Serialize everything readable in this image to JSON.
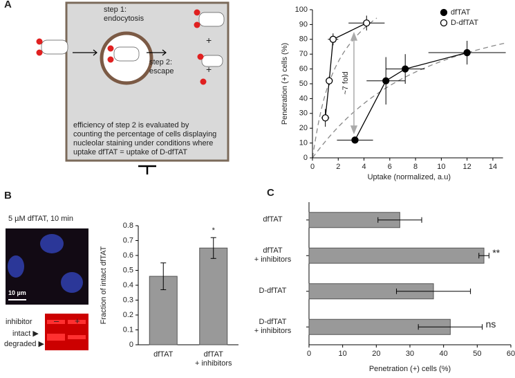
{
  "panel_labels": [
    "A",
    "B",
    "C"
  ],
  "diagram": {
    "step1": "step 1:\nendocytosis",
    "step2": "step 2:\nescape",
    "plus": "+",
    "caption": "efficiency of step 2 is evaluated by\ncounting the percentage of cells displaying\nnucleolar staining under conditions where\nuptake dfTAT = uptake of D-dfTAT"
  },
  "micrograph": {
    "title": "5 µM dfTAT, 10 min",
    "scale_bar": "10 µm",
    "inhibitor": "inhibitor",
    "minus": "–",
    "plus": "+",
    "intact": "intact ▶",
    "degraded": "degraded ▶"
  },
  "chart_data": [
    {
      "type": "scatter",
      "xlabel": "Uptake (normalized, a.u)",
      "ylabel": "Penetration (+) cells (%)",
      "xlim": [
        0,
        15
      ],
      "xticks": [
        0,
        2,
        4,
        6,
        8,
        10,
        12,
        14
      ],
      "ylim": [
        0,
        100
      ],
      "yticks": [
        0,
        10,
        20,
        30,
        40,
        50,
        60,
        70,
        80,
        90,
        100
      ],
      "annotation": "~7 fold",
      "legend": "upper right",
      "series": [
        {
          "name": "dfTAT",
          "color": "#000000",
          "marker": "filled",
          "x": [
            3.3,
            5.7,
            7.2,
            12
          ],
          "values": [
            12,
            52,
            60,
            71
          ],
          "xerr": [
            1.4,
            1.5,
            1.5,
            3
          ],
          "yerr": [
            2,
            16,
            10,
            8
          ]
        },
        {
          "name": "D-dfTAT",
          "color": "#000000",
          "marker": "open",
          "x": [
            1.0,
            1.3,
            1.6,
            4.2
          ],
          "values": [
            27,
            52,
            80,
            91
          ],
          "xerr": [
            0.3,
            0.2,
            0.4,
            1.4
          ],
          "yerr": [
            6,
            3,
            4,
            5
          ]
        }
      ]
    },
    {
      "type": "bar",
      "ylabel": "Fraction of intact dfTAT",
      "categories": [
        "dfTAT",
        "dfTAT\n+ inhibitors"
      ],
      "values": [
        0.46,
        0.65
      ],
      "errors": [
        0.09,
        0.07
      ],
      "significance": [
        null,
        "*"
      ],
      "color": "#999999",
      "ylim": [
        0,
        0.8
      ],
      "yticks": [
        0,
        0.1,
        0.2,
        0.3,
        0.4,
        0.5,
        0.6,
        0.7,
        0.8
      ]
    },
    {
      "type": "barh",
      "xlabel": "Penetration (+) cells (%)",
      "categories": [
        "dfTAT",
        "dfTAT\n+ inhibitors",
        "D-dfTAT",
        "D-dfTAT\n+ inhibitors"
      ],
      "values": [
        27,
        52,
        37,
        42
      ],
      "errors": [
        6.5,
        1.5,
        11,
        9.5
      ],
      "significance": [
        null,
        "**",
        null,
        "ns"
      ],
      "color": "#999999",
      "xlim": [
        0,
        60
      ],
      "xticks": [
        0,
        10,
        20,
        30,
        40,
        50,
        60
      ]
    }
  ]
}
